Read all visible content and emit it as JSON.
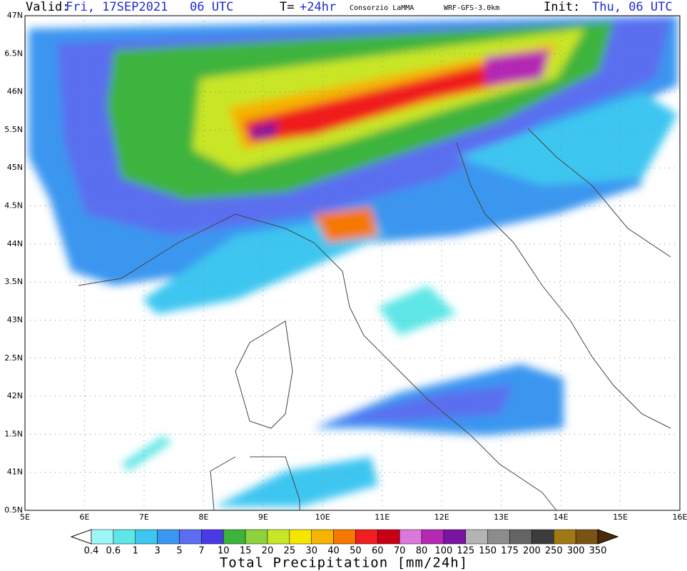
{
  "header": {
    "valid_label": "Valid:",
    "valid_time": "Fri, 17SEP2021   06 UTC",
    "lead_label": "T=",
    "lead": "+24hr",
    "source": "Consorzio LaMMA",
    "model": "WRF-GFS-3.0km",
    "init_label": "Init:",
    "init_time": "Thu, 06 UTC"
  },
  "map": {
    "lat_labels": [
      "47N",
      "6.5N",
      "46N",
      "5.5N",
      "45N",
      "4.5N",
      "44N",
      "3.5N",
      "43N",
      "2.5N",
      "42N",
      "1.5N",
      "41N",
      "0.5N"
    ],
    "lon_labels": [
      "5E",
      "6E",
      "7E",
      "8E",
      "9E",
      "10E",
      "11E",
      "12E",
      "13E",
      "14E",
      "15E",
      "16E"
    ]
  },
  "colorbar": {
    "title": "Total Precipitation [mm/24h]",
    "levels": [
      0.4,
      0.6,
      1,
      3,
      5,
      7,
      10,
      15,
      20,
      25,
      30,
      40,
      50,
      60,
      70,
      80,
      100,
      125,
      150,
      175,
      200,
      250,
      300,
      350
    ],
    "under_color": "#ffffff",
    "over_color": "#4a2a0a",
    "colors": [
      "#9ef6f6",
      "#5fe6e6",
      "#3cc6f0",
      "#3a96f0",
      "#5a6ef0",
      "#4a3ae6",
      "#3cb43c",
      "#8cd23c",
      "#c8e628",
      "#f5e600",
      "#f5b400",
      "#f57800",
      "#f01e1e",
      "#c80014",
      "#dc78dc",
      "#b428b4",
      "#7814a0",
      "#b4b4b4",
      "#8c8c8c",
      "#646464",
      "#3c3c3c",
      "#a07814",
      "#7a5214"
    ]
  }
}
